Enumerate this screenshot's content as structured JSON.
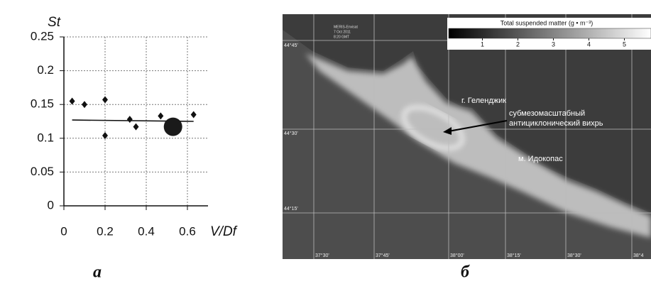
{
  "chart_data": {
    "type": "scatter",
    "x_label": "V/Df",
    "y_label": "St",
    "xlim": [
      0,
      0.7
    ],
    "ylim": [
      0,
      0.25
    ],
    "xticks": [
      0,
      0.2,
      0.4,
      0.6
    ],
    "yticks": [
      0,
      0.05,
      0.1,
      0.15,
      0.2,
      0.25
    ],
    "grid": true,
    "series": [
      {
        "marker": "diamond",
        "color": "#111111",
        "x": [
          0.04,
          0.1,
          0.2,
          0.2,
          0.32,
          0.35,
          0.47,
          0.63
        ],
        "values": [
          0.155,
          0.15,
          0.157,
          0.104,
          0.128,
          0.117,
          0.133,
          0.135
        ]
      },
      {
        "marker": "circle",
        "color": "#1a1a1a",
        "x": [
          0.53
        ],
        "values": [
          0.117
        ]
      }
    ],
    "trend": {
      "color": "#111111",
      "x": [
        0.04,
        0.63
      ],
      "values": [
        0.127,
        0.125
      ]
    }
  },
  "image": {
    "header": [
      "MERIS-Envisat",
      "7 Oct 2011",
      "8:20 GMT"
    ],
    "colorbar": {
      "title": "Total suspended matter (g • m⁻³)",
      "ticks": [
        1,
        2,
        3,
        4,
        5
      ]
    },
    "latitudes": [
      "44°45'",
      "44°30'",
      "44°15'"
    ],
    "longitudes": [
      "37°30'",
      "37°45'",
      "38°00'",
      "38°15'",
      "38°30'",
      "38°4"
    ],
    "annotations": [
      "г. Геленджик",
      "субмезомасштабный",
      "антициклонический вихрь",
      "м. Идокопас"
    ]
  },
  "captions": [
    "а",
    "б"
  ]
}
